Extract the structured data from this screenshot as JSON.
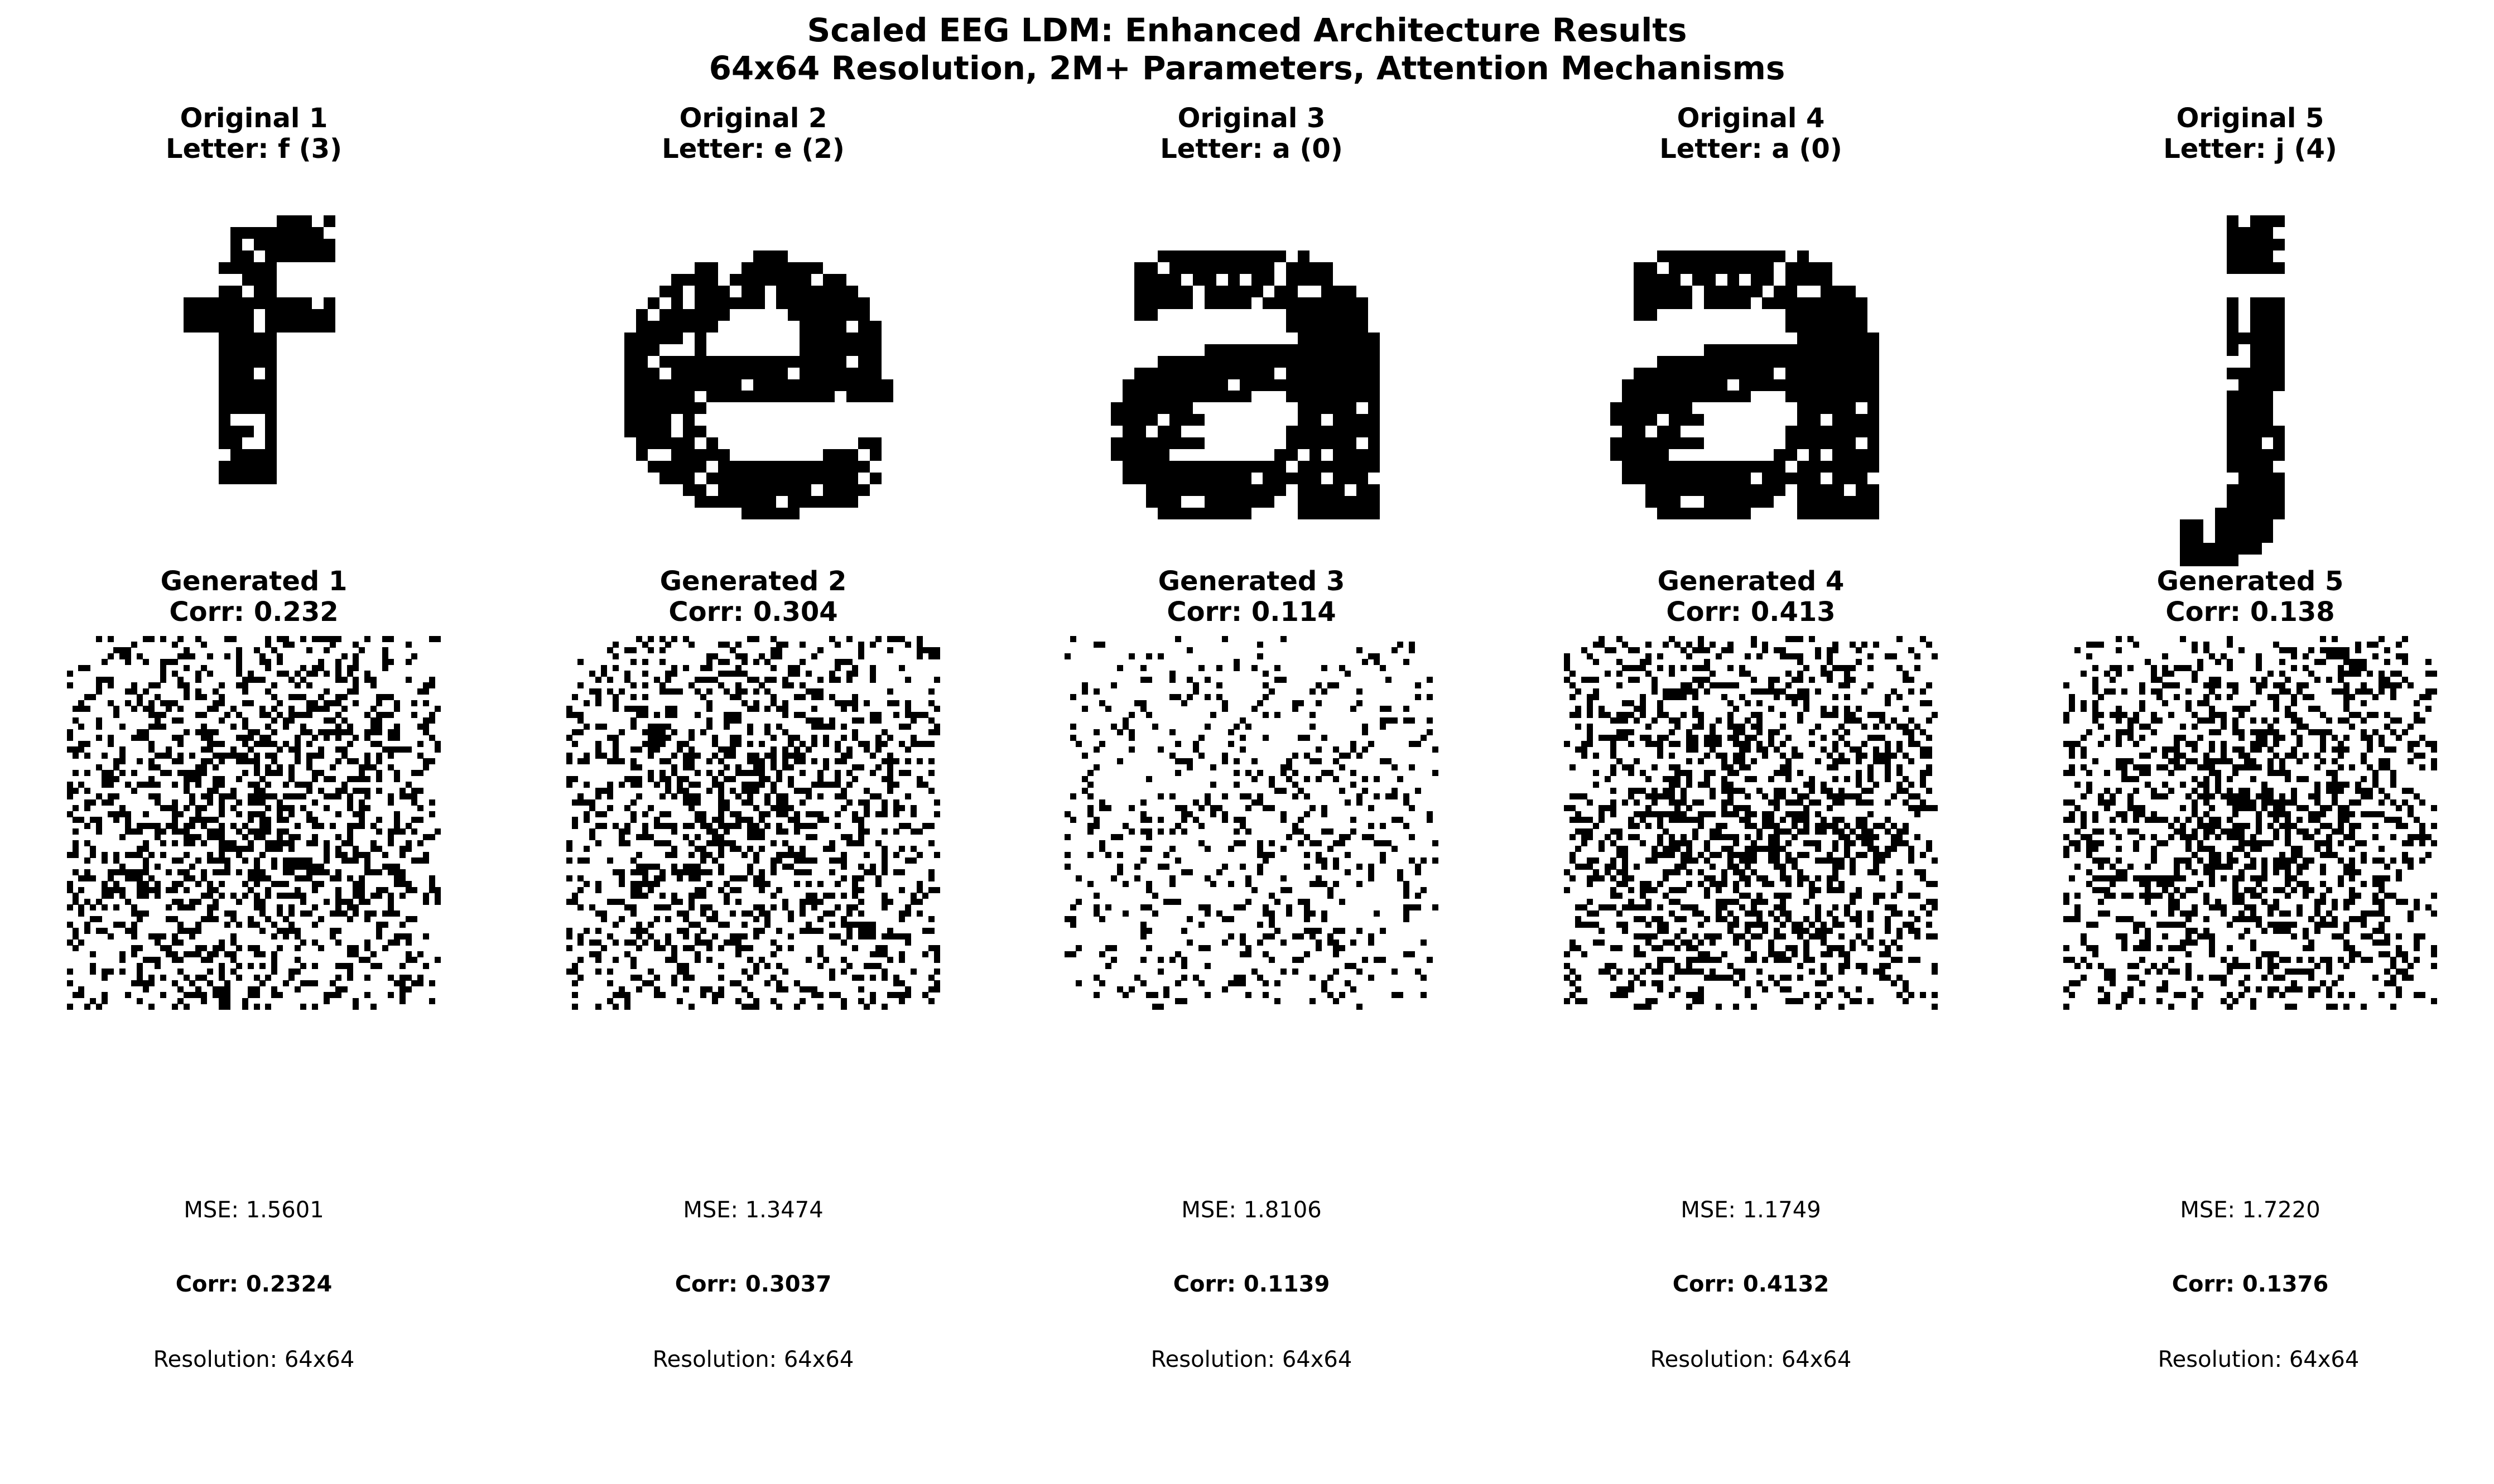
{
  "figure": {
    "title_line1": "Scaled EEG LDM: Enhanced Architecture Results",
    "title_line2": "64x64 Resolution, 2M+ Parameters, Attention Mechanisms"
  },
  "columns": [
    {
      "original_title": "Original 1",
      "original_subtitle": "Letter: f (3)",
      "generated_title": "Generated 1",
      "generated_subtitle": "Corr: 0.232",
      "mse": "MSE: 1.5601",
      "corr": "Corr: 0.2324",
      "resolution": "Resolution: 64x64",
      "glyph": "f",
      "generated_density": 0.42
    },
    {
      "original_title": "Original 2",
      "original_subtitle": "Letter: e (2)",
      "generated_title": "Generated 2",
      "generated_subtitle": "Corr: 0.304",
      "mse": "MSE: 1.3474",
      "corr": "Corr: 0.3037",
      "resolution": "Resolution: 64x64",
      "glyph": "e",
      "generated_density": 0.4
    },
    {
      "original_title": "Original 3",
      "original_subtitle": "Letter: a (0)",
      "generated_title": "Generated 3",
      "generated_subtitle": "Corr: 0.114",
      "mse": "MSE: 1.8106",
      "corr": "Corr: 0.1139",
      "resolution": "Resolution: 64x64",
      "glyph": "a",
      "generated_density": 0.2
    },
    {
      "original_title": "Original 4",
      "original_subtitle": "Letter: a (0)",
      "generated_title": "Generated 4",
      "generated_subtitle": "Corr: 0.413",
      "mse": "MSE: 1.1749",
      "corr": "Corr: 0.4132",
      "resolution": "Resolution: 64x64",
      "glyph": "a",
      "generated_density": 0.46
    },
    {
      "original_title": "Original 5",
      "original_subtitle": "Letter: j (4)",
      "generated_title": "Generated 5",
      "generated_subtitle": "Corr: 0.138",
      "mse": "MSE: 1.7220",
      "corr": "Corr: 0.1376",
      "resolution": "Resolution: 64x64",
      "glyph": "j",
      "generated_density": 0.43
    }
  ]
}
